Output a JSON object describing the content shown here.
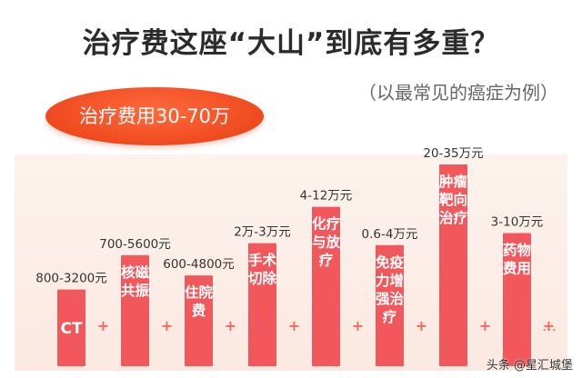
{
  "title": "治疗费这座“大山”到底有多重？",
  "subtitle": "（以最常见的癌症为例）",
  "badge": "治疗费用30-70万",
  "colors": {
    "bar": "#f2575c",
    "accent": "#ef4a1f",
    "plus": "#ee6a5a",
    "label": "#333333"
  },
  "chart_data": {
    "type": "bar",
    "title": "治疗费这座“大山”到底有多重？",
    "subtitle": "（以最常见的癌症为例）",
    "unit": "万元",
    "categories": [
      "CT",
      "核磁共振",
      "住院费",
      "手术切除",
      "化疗与放疗",
      "免疫力增强治疗",
      "肿瘤靶向治疗",
      "药物费用"
    ],
    "bar_text": [
      "CT",
      "核磁\n共振",
      "住院\n费",
      "手术\n切除",
      "化疗\n与放\n疗",
      "免疫\n力增\n强治\n疗",
      "肿瘤\n靶向\n治疗",
      "药物\n费用"
    ],
    "range_labels": [
      "800-3200元",
      "700-5600元",
      "600-4800元",
      "2万-3万元",
      "4-12万元",
      "0.6-4万元",
      "20-35万元",
      "3-10万元"
    ],
    "relative_height": [
      0.38,
      0.55,
      0.45,
      0.61,
      0.79,
      0.6,
      1.0,
      0.66
    ],
    "operator": "+",
    "ellipsis": "…",
    "annotation": "治疗费用30-70万"
  },
  "watermark": "头条 @星汇城堡"
}
